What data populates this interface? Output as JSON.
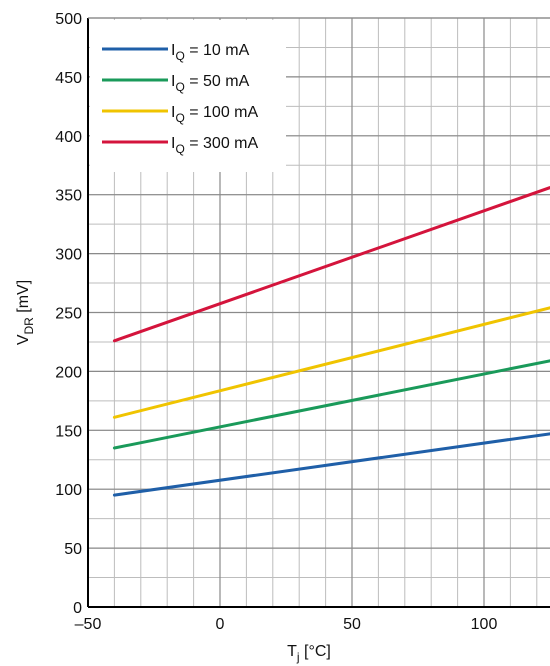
{
  "chart_data": {
    "type": "line",
    "title": "",
    "xlabel": {
      "main": "T",
      "sub": "j",
      "unit": " [°C]"
    },
    "ylabel": {
      "main": "V",
      "sub": "DR",
      "unit": " [mV]"
    },
    "xlim": [
      -50,
      125
    ],
    "ylim": [
      0,
      500
    ],
    "grid": true,
    "legend_position": "top-left",
    "x_tick_labels": [
      "–50",
      "0",
      "50",
      "100"
    ],
    "x_tick_values": [
      -50,
      0,
      50,
      100
    ],
    "y_tick_labels": [
      "0",
      "50",
      "100",
      "150",
      "200",
      "250",
      "300",
      "350",
      "400",
      "450",
      "500"
    ],
    "y_tick_values": [
      0,
      50,
      100,
      150,
      200,
      250,
      300,
      350,
      400,
      450,
      500
    ],
    "series": [
      {
        "name": "I",
        "name_sub": "Q",
        "name_suffix": " = 10 mA",
        "color": "#1f5fa8",
        "x": [
          -40,
          125
        ],
        "y": [
          95,
          147
        ]
      },
      {
        "name": "I",
        "name_sub": "Q",
        "name_suffix": " = 50 mA",
        "color": "#1a9a5a",
        "x": [
          -40,
          125
        ],
        "y": [
          135,
          209
        ]
      },
      {
        "name": "I",
        "name_sub": "Q",
        "name_suffix": " = 100 mA",
        "color": "#f0c400",
        "x": [
          -40,
          125
        ],
        "y": [
          161,
          254
        ]
      },
      {
        "name": "I",
        "name_sub": "Q",
        "name_suffix": " = 300 mA",
        "color": "#d4143c",
        "x": [
          -40,
          125
        ],
        "y": [
          226,
          356
        ]
      }
    ]
  }
}
